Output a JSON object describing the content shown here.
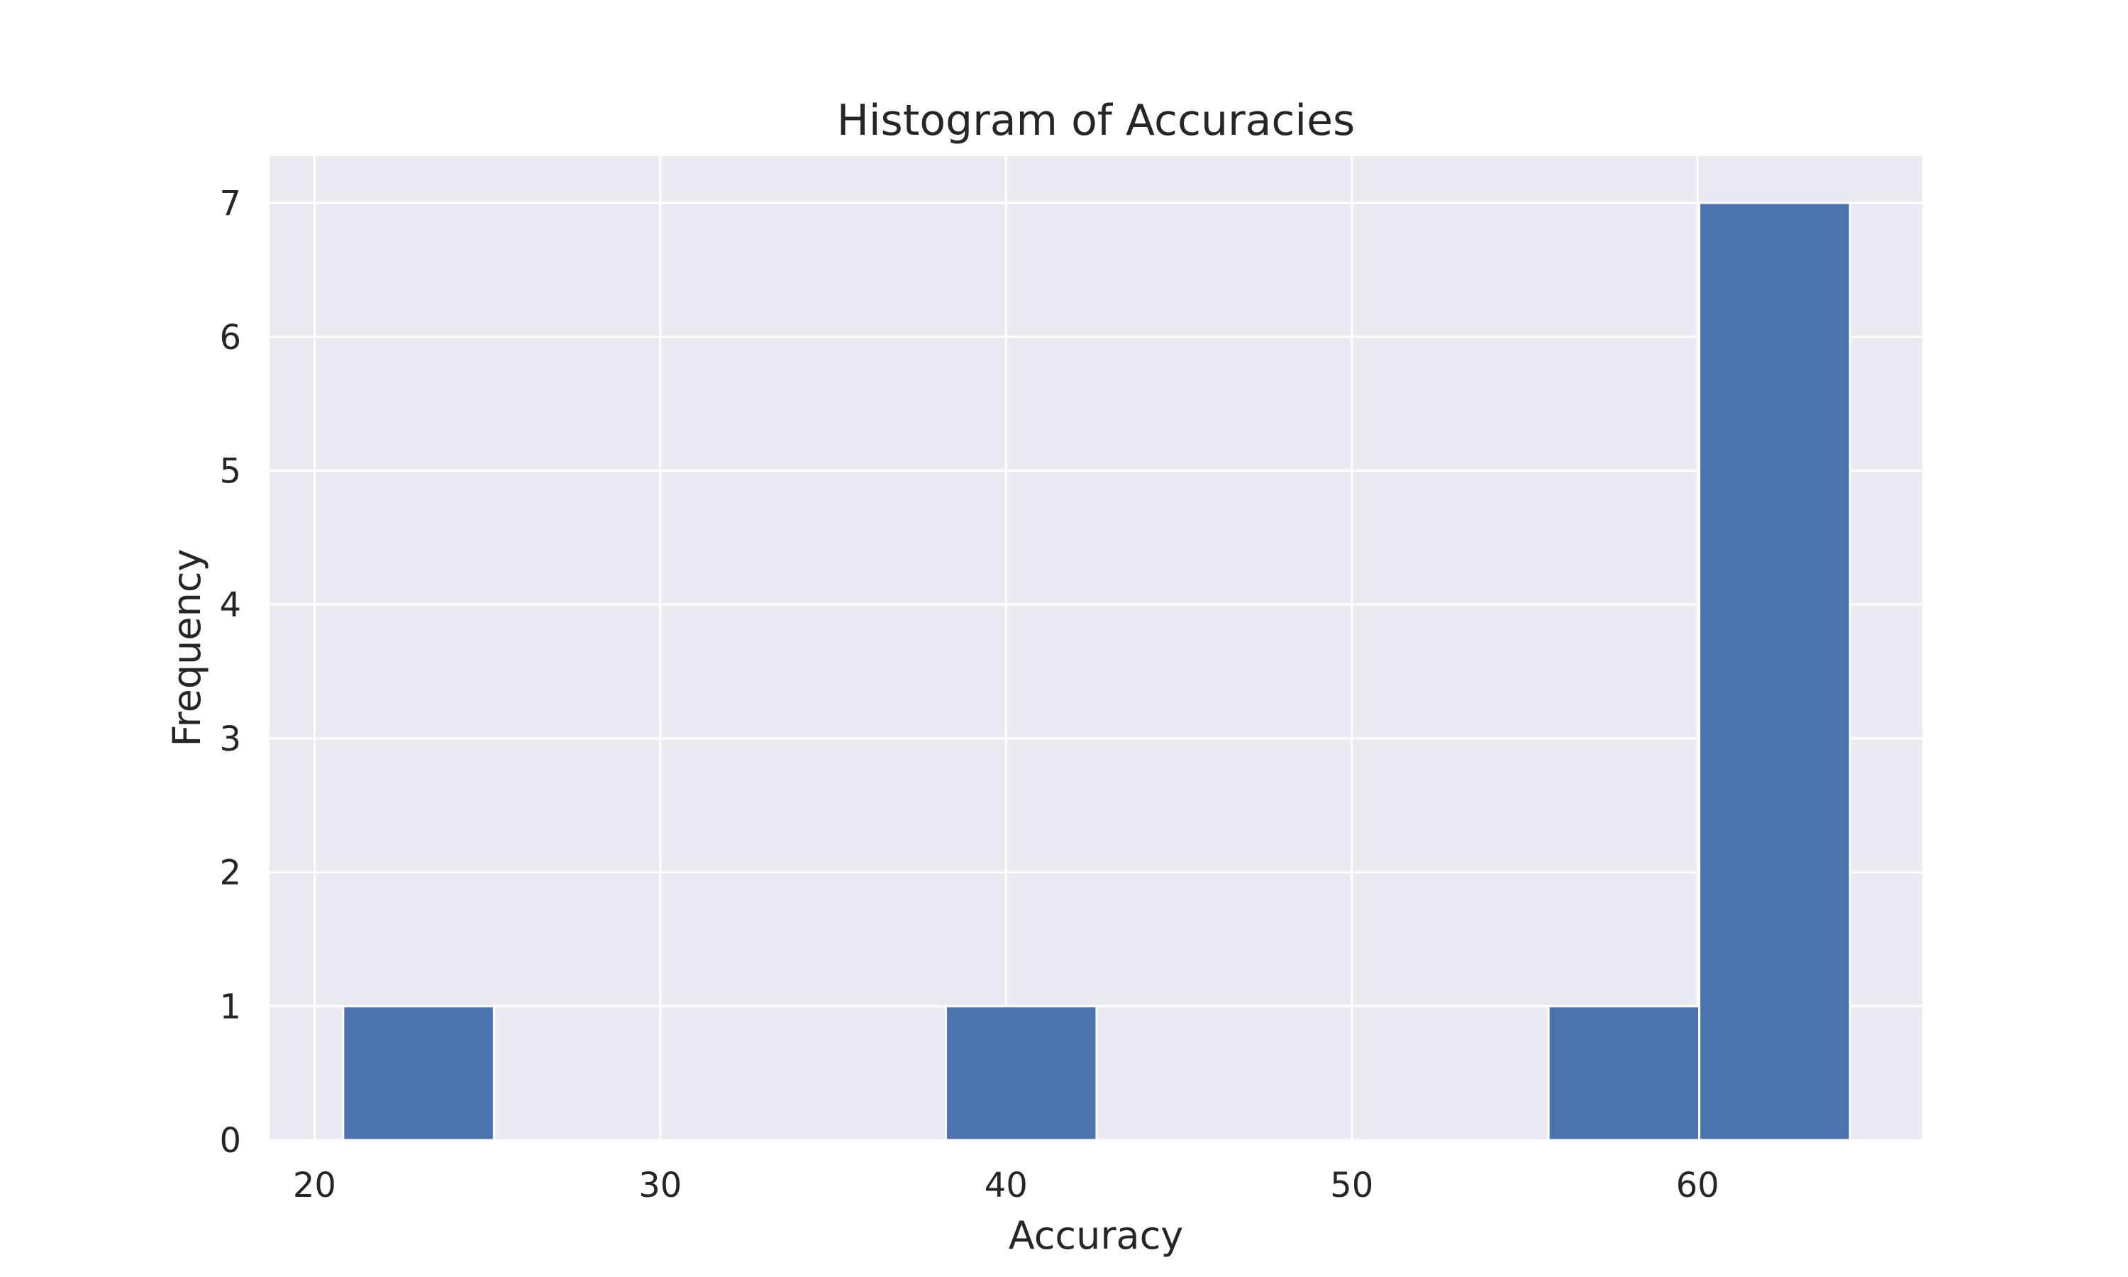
{
  "chart_data": {
    "type": "bar",
    "title": "Histogram of Accuracies",
    "xlabel": "Accuracy",
    "ylabel": "Frequency",
    "xlim": [
      18.7,
      66.5
    ],
    "ylim": [
      0,
      7.35
    ],
    "x_ticks": [
      20,
      30,
      40,
      50,
      60
    ],
    "y_ticks": [
      0,
      1,
      2,
      3,
      4,
      5,
      6,
      7
    ],
    "bins": [
      {
        "start": 20.83,
        "end": 25.19,
        "value": 1
      },
      {
        "start": 38.26,
        "end": 42.62,
        "value": 1
      },
      {
        "start": 55.69,
        "end": 60.05,
        "value": 1
      },
      {
        "start": 60.05,
        "end": 64.41,
        "value": 7
      }
    ],
    "grid": true,
    "colors": {
      "bar": "#4c72b0",
      "axes_background": "#eaeaf2",
      "grid": "#ffffff",
      "text": "#262626"
    }
  }
}
